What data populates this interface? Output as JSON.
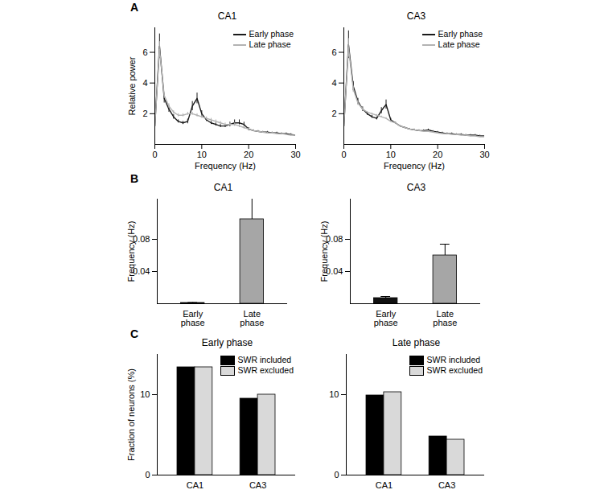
{
  "chart_data": [
    {
      "type": "line",
      "panel": "A",
      "title": "CA1",
      "x_label": "Frequency (Hz)",
      "y_label": "Relative power",
      "x": [
        0,
        1,
        2,
        3,
        4,
        5,
        6,
        7,
        8,
        9,
        10,
        11,
        12,
        13,
        14,
        15,
        16,
        17,
        18,
        19,
        20,
        21,
        22,
        23,
        24,
        25,
        26,
        27,
        28,
        29,
        30
      ],
      "series": [
        {
          "name": "Early phase",
          "color": "#1a1a1a",
          "values": [
            1.2,
            6.4,
            3.0,
            2.3,
            1.8,
            1.5,
            1.4,
            1.5,
            2.5,
            3.0,
            2.0,
            1.6,
            1.4,
            1.3,
            1.2,
            1.2,
            1.3,
            1.4,
            1.4,
            1.3,
            1.0,
            0.9,
            0.85,
            0.8,
            0.8,
            0.75,
            0.75,
            0.7,
            0.7,
            0.65,
            0.6
          ],
          "errors": [
            0.1,
            0.8,
            0.3,
            0.2,
            0.15,
            0.1,
            0.1,
            0.15,
            0.3,
            0.35,
            0.2,
            0.1,
            0.1,
            0.1,
            0.1,
            0.1,
            0.15,
            0.2,
            0.2,
            0.15,
            0.1,
            0.05,
            0.05,
            0.05,
            0.05,
            0.05,
            0.05,
            0.05,
            0.05,
            0.05,
            0.05
          ]
        },
        {
          "name": "Late phase",
          "color": "#b3b3b3",
          "values": [
            1.2,
            6.2,
            3.2,
            2.5,
            2.1,
            1.9,
            1.9,
            2.0,
            2.0,
            1.9,
            1.8,
            1.7,
            1.6,
            1.5,
            1.4,
            1.3,
            1.3,
            1.3,
            1.2,
            1.1,
            1.0,
            0.9,
            0.85,
            0.8,
            0.75,
            0.75,
            0.7,
            0.7,
            0.65,
            0.6,
            0.6
          ],
          "errors": [
            0.1,
            0.5,
            0.2,
            0.15,
            0.1,
            0.1,
            0.1,
            0.1,
            0.1,
            0.1,
            0.1,
            0.1,
            0.1,
            0.1,
            0.1,
            0.1,
            0.1,
            0.1,
            0.1,
            0.1,
            0.05,
            0.05,
            0.05,
            0.05,
            0.05,
            0.05,
            0.05,
            0.05,
            0.05,
            0.05,
            0.05
          ]
        }
      ],
      "xlim": [
        0,
        30
      ],
      "ylim": [
        0,
        7.6
      ],
      "xticks": [
        0,
        10,
        20,
        30
      ],
      "yticks": [
        2,
        4,
        6
      ],
      "legend": "top-right"
    },
    {
      "type": "line",
      "title": "CA3",
      "x_label": "Frequency (Hz)",
      "x": [
        0,
        1,
        2,
        3,
        4,
        5,
        6,
        7,
        8,
        9,
        10,
        11,
        12,
        13,
        14,
        15,
        16,
        17,
        18,
        19,
        20,
        21,
        22,
        23,
        24,
        25,
        26,
        27,
        28,
        29,
        30
      ],
      "series": [
        {
          "name": "Early phase",
          "color": "#1a1a1a",
          "values": [
            1.2,
            6.5,
            3.8,
            2.8,
            2.3,
            2.0,
            1.8,
            1.7,
            2.2,
            2.6,
            1.6,
            1.4,
            1.2,
            1.1,
            1.0,
            0.95,
            0.9,
            0.9,
            0.95,
            0.85,
            0.8,
            0.75,
            0.7,
            0.7,
            0.65,
            0.65,
            0.6,
            0.6,
            0.6,
            0.55,
            0.55
          ],
          "errors": [
            0.1,
            0.9,
            0.3,
            0.2,
            0.15,
            0.1,
            0.1,
            0.1,
            0.2,
            0.3,
            0.1,
            0.05,
            0.05,
            0.05,
            0.05,
            0.05,
            0.05,
            0.05,
            0.05,
            0.05,
            0.05,
            0.05,
            0.05,
            0.05,
            0.05,
            0.05,
            0.05,
            0.05,
            0.05,
            0.05,
            0.05
          ]
        },
        {
          "name": "Late phase",
          "color": "#b3b3b3",
          "values": [
            1.2,
            6.3,
            3.6,
            2.7,
            2.3,
            2.1,
            2.0,
            1.9,
            1.8,
            1.7,
            1.5,
            1.4,
            1.2,
            1.1,
            1.0,
            0.95,
            0.9,
            0.85,
            0.85,
            0.8,
            0.75,
            0.7,
            0.7,
            0.65,
            0.65,
            0.6,
            0.6,
            0.55,
            0.55,
            0.5,
            0.5
          ],
          "errors": [
            0.1,
            0.6,
            0.2,
            0.15,
            0.1,
            0.05,
            0.05,
            0.05,
            0.05,
            0.05,
            0.05,
            0.05,
            0.05,
            0.05,
            0.05,
            0.05,
            0.05,
            0.05,
            0.05,
            0.05,
            0.05,
            0.05,
            0.05,
            0.05,
            0.05,
            0.05,
            0.05,
            0.05,
            0.05,
            0.05,
            0.05
          ]
        }
      ],
      "xlim": [
        0,
        30
      ],
      "ylim": [
        0,
        7.6
      ],
      "xticks": [
        0,
        10,
        20,
        30
      ],
      "yticks": [
        2,
        4,
        6
      ],
      "legend": "top-right"
    },
    {
      "type": "bar",
      "panel": "B",
      "title": "CA1",
      "y_label": "Frequency (Hz)",
      "categories": [
        "Early phase",
        "Late phase"
      ],
      "values": [
        0.001,
        0.105
      ],
      "errors": [
        0.0005,
        0.028
      ],
      "colors": [
        "#111111",
        "#a6a6a6"
      ],
      "ylim": [
        0,
        0.13
      ],
      "yticks": [
        0.04,
        0.08
      ]
    },
    {
      "type": "bar",
      "title": "CA3",
      "y_label": "Frequency (Hz)",
      "categories": [
        "Early phase",
        "Late phase"
      ],
      "values": [
        0.007,
        0.06
      ],
      "errors": [
        0.002,
        0.014
      ],
      "colors": [
        "#111111",
        "#a6a6a6"
      ],
      "ylim": [
        0,
        0.13
      ],
      "yticks": [
        0.04,
        0.08
      ]
    },
    {
      "type": "bar",
      "panel": "C",
      "title": "Early phase",
      "y_label": "Fraction of neurons (%)",
      "categories": [
        "CA1",
        "CA3"
      ],
      "series": [
        {
          "name": "SWR included",
          "color": "#000000",
          "values": [
            13.4,
            9.5
          ]
        },
        {
          "name": "SWR excluded",
          "color": "#d9d9d9",
          "values": [
            13.4,
            10.0
          ]
        }
      ],
      "ylim": [
        0,
        15
      ],
      "yticks": [
        0,
        10
      ],
      "legend": "top-right"
    },
    {
      "type": "bar",
      "title": "Late phase",
      "categories": [
        "CA1",
        "CA3"
      ],
      "series": [
        {
          "name": "SWR included",
          "color": "#000000",
          "values": [
            9.9,
            4.8
          ]
        },
        {
          "name": "SWR excluded",
          "color": "#d9d9d9",
          "values": [
            10.3,
            4.4
          ]
        }
      ],
      "ylim": [
        0,
        15
      ],
      "yticks": [
        0,
        10
      ],
      "legend": "top-right"
    }
  ]
}
